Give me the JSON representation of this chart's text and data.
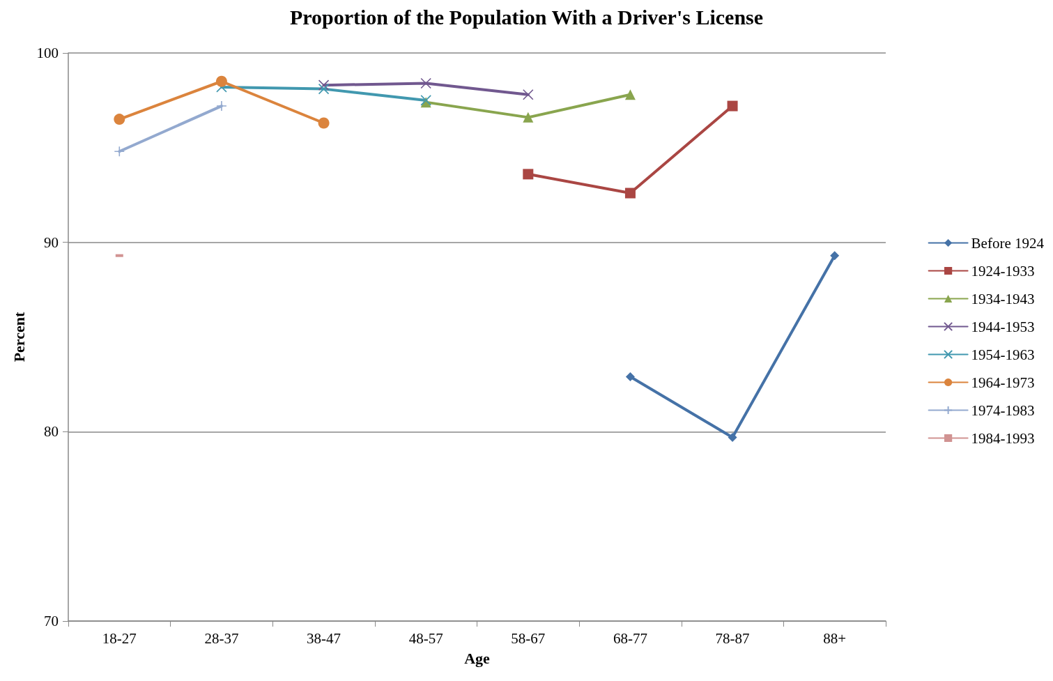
{
  "chart_data": {
    "type": "line",
    "title": "Proportion of the Population With a Driver's License",
    "xlabel": "Age",
    "ylabel": "Percent",
    "categories": [
      "18-27",
      "28-37",
      "38-47",
      "48-57",
      "58-67",
      "68-77",
      "78-87",
      "88+"
    ],
    "series": [
      {
        "name": "Before 1924",
        "color": "#4572a7",
        "marker": "diamond",
        "values": [
          null,
          null,
          null,
          null,
          null,
          82.9,
          79.7,
          89.3
        ]
      },
      {
        "name": "1924-1933",
        "color": "#aa4643",
        "marker": "square",
        "values": [
          null,
          null,
          null,
          null,
          93.6,
          92.6,
          97.2,
          null
        ]
      },
      {
        "name": "1934-1943",
        "color": "#89a54e",
        "marker": "triangle",
        "values": [
          null,
          null,
          null,
          97.4,
          96.6,
          97.8,
          null,
          null
        ]
      },
      {
        "name": "1944-1953",
        "color": "#71588f",
        "marker": "cross",
        "values": [
          null,
          null,
          98.3,
          98.4,
          97.8,
          null,
          null,
          null
        ]
      },
      {
        "name": "1954-1963",
        "color": "#4198af",
        "marker": "cross",
        "values": [
          null,
          98.2,
          98.1,
          97.5,
          null,
          null,
          null,
          null
        ]
      },
      {
        "name": "1964-1973",
        "color": "#db843d",
        "marker": "circle",
        "values": [
          96.5,
          98.5,
          96.3,
          null,
          null,
          null,
          null,
          null
        ]
      },
      {
        "name": "1974-1983",
        "color": "#93a9cf",
        "marker": "plus",
        "values": [
          94.8,
          97.2,
          null,
          null,
          null,
          null,
          null,
          null
        ]
      },
      {
        "name": "1984-1993",
        "color": "#d19392",
        "marker": "square",
        "values": [
          89.3,
          null,
          null,
          null,
          null,
          null,
          null,
          null
        ]
      }
    ],
    "ylim": [
      70,
      100
    ],
    "yticks": [
      70,
      80,
      90,
      100
    ],
    "grid": "y",
    "legend": "right",
    "line_style": "solid"
  }
}
